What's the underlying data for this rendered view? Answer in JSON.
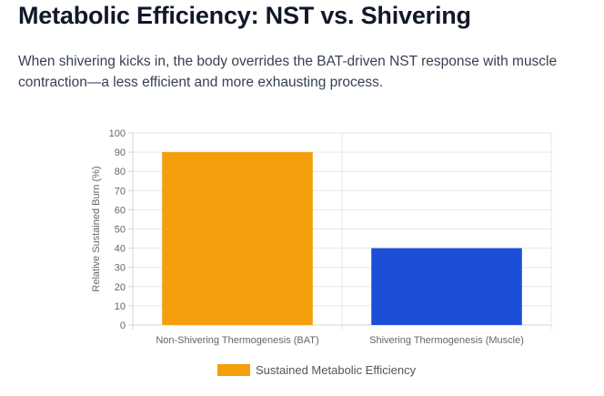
{
  "header": {
    "title": "Metabolic Efficiency: NST vs. Shivering",
    "description": "When shivering kicks in, the body overrides the BAT-driven NST response with muscle contraction—a less efficient and more exhausting process."
  },
  "chart_data": {
    "type": "bar",
    "title": "",
    "xlabel": "",
    "ylabel": "Relative Sustained Burn (%)",
    "ylim": [
      0,
      100
    ],
    "yticks": [
      0,
      10,
      20,
      30,
      40,
      50,
      60,
      70,
      80,
      90,
      100
    ],
    "grid": true,
    "legend_position": "bottom",
    "categories": [
      "Non-Shivering Thermogenesis (BAT)",
      "Shivering Thermogenesis (Muscle)"
    ],
    "series": [
      {
        "name": "Sustained Metabolic Efficiency",
        "values": [
          90,
          40
        ],
        "colors": [
          "#f59e0b",
          "#1d4ed8"
        ]
      }
    ]
  }
}
